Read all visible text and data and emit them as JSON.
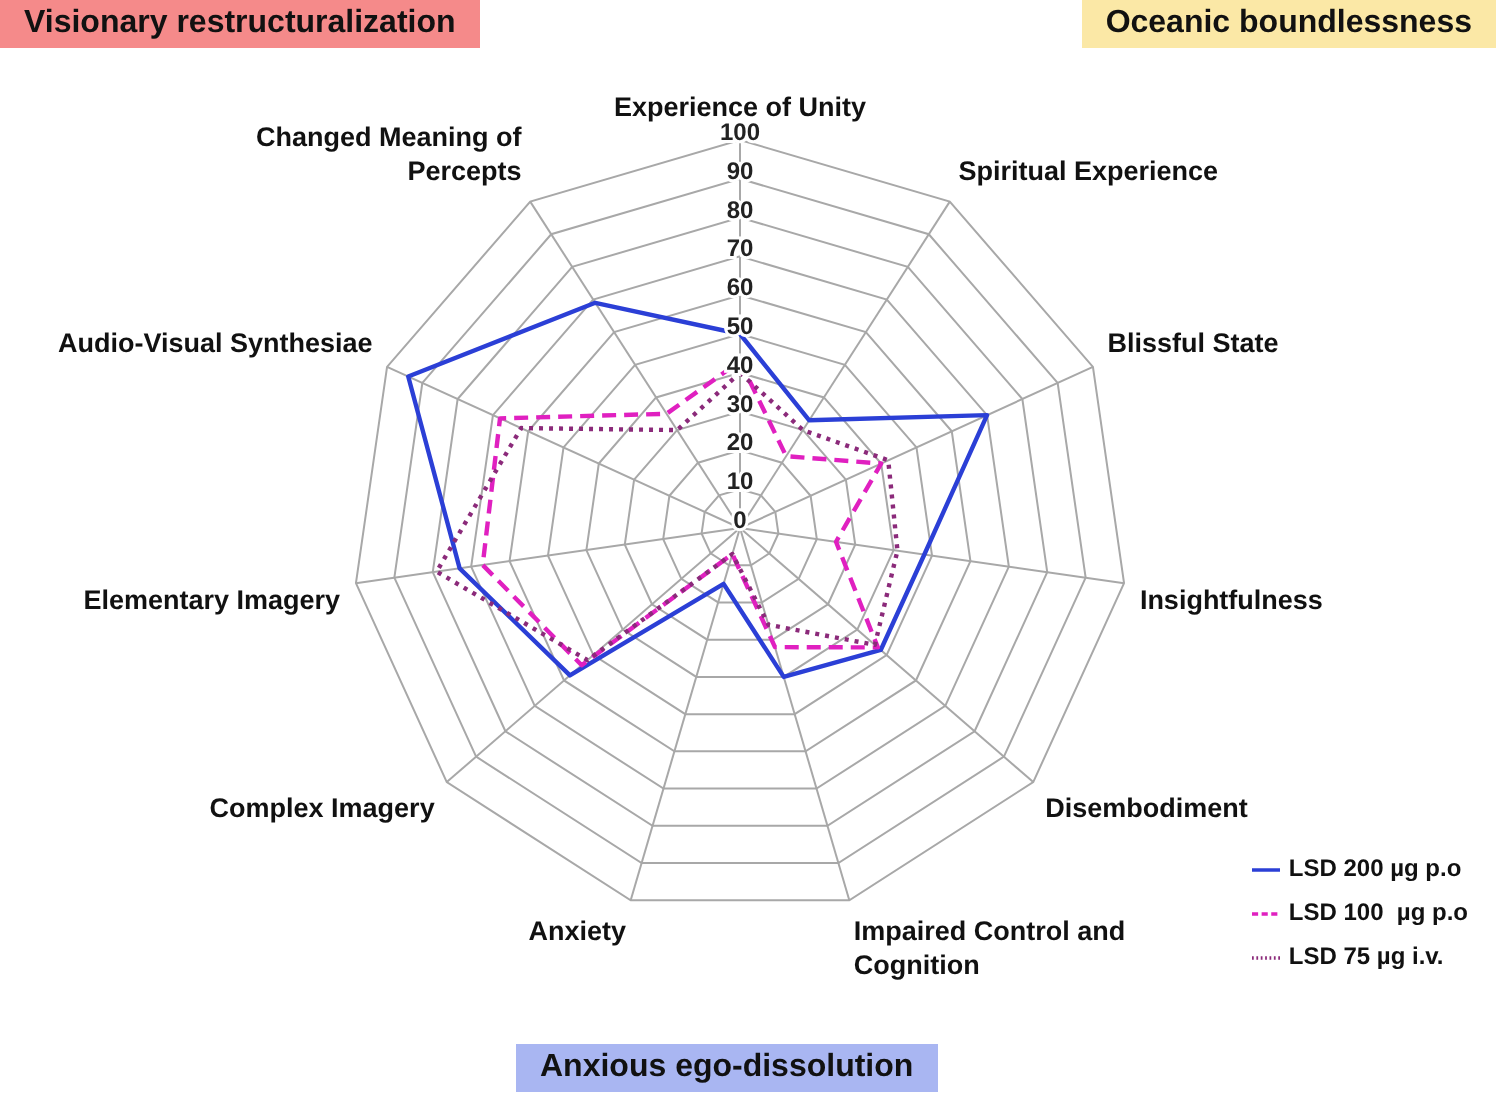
{
  "chart_data": {
    "type": "radar",
    "categories": [
      "Experience of Unity",
      "Spiritual Experience",
      "Blissful State",
      "Insightfulness",
      "Disembodiment",
      "Impaired Control and Cognition",
      "Anxiety",
      "Complex Imagery",
      "Elementary Imagery",
      "Audio-Visual Synthesiae",
      "Changed Meaning of Percepts"
    ],
    "series": [
      {
        "name": "LSD 200 µg p.o",
        "color": "#2b3fd6",
        "line_style": "solid",
        "values": [
          50,
          33,
          70,
          48,
          48,
          40,
          15,
          58,
          73,
          94,
          69
        ]
      },
      {
        "name": "LSD 100  µg p.o",
        "color": "#e020c0",
        "line_style": "dashed",
        "values": [
          43,
          22,
          40,
          25,
          47,
          32,
          7,
          54,
          67,
          68,
          35
        ]
      },
      {
        "name": "LSD 75 µg i.v.",
        "color": "#8b2a7a",
        "line_style": "dotted",
        "values": [
          40,
          30,
          42,
          41,
          46,
          26,
          7,
          52,
          79,
          62,
          30
        ]
      }
    ],
    "ylim": [
      0,
      100
    ],
    "yticks": [
      0,
      10,
      20,
      30,
      40,
      50,
      60,
      70,
      80,
      90,
      100
    ],
    "grid": true,
    "marker": "none",
    "legend": "bottom right",
    "annotations": [
      "Visionary restructuralization",
      "Oceanic boundlessness",
      "Anxious ego-dissolution"
    ]
  }
}
